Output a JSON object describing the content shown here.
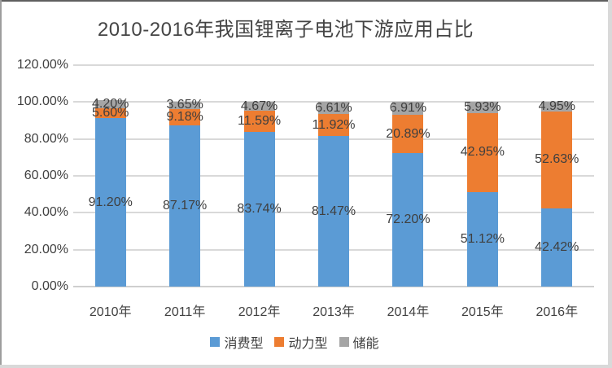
{
  "chart_data": {
    "type": "bar",
    "stacked": true,
    "title": "2010-2016年我国锂离子电池下游应用占比",
    "categories": [
      "2010年",
      "2011年",
      "2012年",
      "2013年",
      "2014年",
      "2015年",
      "2016年"
    ],
    "series": [
      {
        "name": "消费型",
        "color": "#5B9BD5",
        "values": [
          91.2,
          87.17,
          83.74,
          81.47,
          72.2,
          51.12,
          42.42
        ],
        "labels": [
          "91.20%",
          "87.17%",
          "83.74%",
          "81.47%",
          "72.20%",
          "51.12%",
          "42.42%"
        ]
      },
      {
        "name": "动力型",
        "color": "#ED7D31",
        "values": [
          5.6,
          9.18,
          11.59,
          11.92,
          20.89,
          42.95,
          52.63
        ],
        "labels": [
          "5.60%",
          "9.18%",
          "11.59%",
          "11.92%",
          "20.89%",
          "42.95%",
          "52.63%"
        ]
      },
      {
        "name": "储能",
        "color": "#A5A5A5",
        "values": [
          4.2,
          3.65,
          4.67,
          6.61,
          6.91,
          5.93,
          4.95
        ],
        "labels": [
          "4.20%",
          "3.65%",
          "4.67%",
          "6.61%",
          "6.91%",
          "5.93%",
          "4.95%"
        ]
      }
    ],
    "y_axis": {
      "min": 0,
      "max": 120,
      "step": 20,
      "tick_labels": [
        "0.00%",
        "20.00%",
        "40.00%",
        "60.00%",
        "80.00%",
        "100.00%",
        "120.00%"
      ]
    },
    "legend": {
      "position": "bottom",
      "entries": [
        "消费型",
        "动力型",
        "储能"
      ]
    },
    "grid": true,
    "colors": {
      "gridline": "#D9D9D9",
      "axis_line": "#CFCFCF",
      "text": "#404040"
    },
    "background": "#FFFFFF"
  }
}
